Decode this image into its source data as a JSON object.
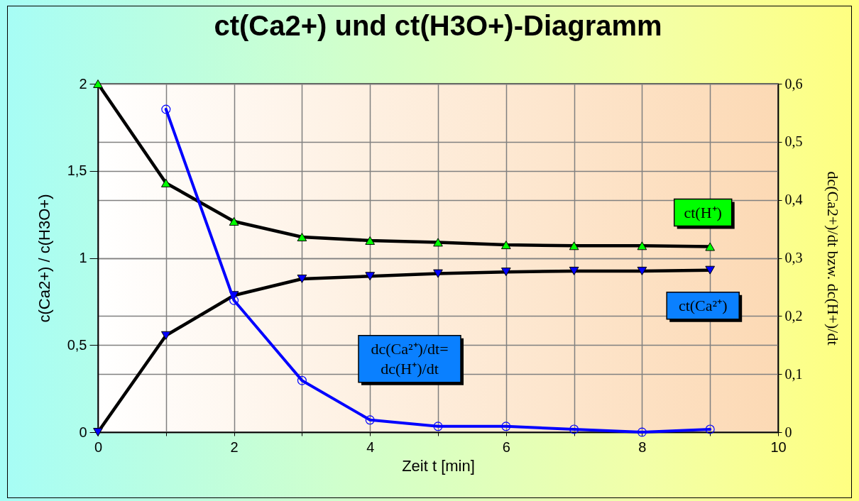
{
  "chart_data": {
    "type": "line",
    "title": "ct(Ca2+) und ct(H3O+)-Diagramm",
    "xlabel": "Zeit t [min]",
    "ylabel": "c(Ca2+) / c(H3O+)",
    "y2label": "dc(Ca2+)/dt bzw. dc(H+)/dt",
    "x": [
      0,
      1,
      2,
      3,
      4,
      5,
      6,
      7,
      8,
      9
    ],
    "xlim": [
      0,
      10
    ],
    "xticks": [
      0,
      {
        "value": 1,
        "label": null
      },
      2,
      {
        "value": 3,
        "label": null
      },
      4,
      {
        "value": 5,
        "label": null
      },
      6,
      {
        "value": 7,
        "label": null
      },
      8,
      {
        "value": 9,
        "label": null
      },
      10
    ],
    "ylim": [
      0,
      2
    ],
    "yticks": [
      0,
      {
        "value": 0.5,
        "label": "0,5"
      },
      1,
      {
        "value": 1.5,
        "label": "1,5"
      },
      2
    ],
    "y2lim": [
      0,
      0.6
    ],
    "y2ticks": [
      0,
      {
        "value": 0.1,
        "label": "0,1"
      },
      {
        "value": 0.2,
        "label": "0,2"
      },
      {
        "value": 0.3,
        "label": "0,3"
      },
      {
        "value": 0.4,
        "label": "0,4"
      },
      {
        "value": 0.5,
        "label": "0,5"
      },
      {
        "value": 0.6,
        "label": "0,6"
      }
    ],
    "grid": true,
    "series": [
      {
        "name": "ct(H⁺)",
        "color": "#000000",
        "colors": [
          "#00ff00",
          "#00ff00",
          "#00ff00",
          "#00ff00",
          "#00ff00",
          "#00ff00",
          "#00ff00",
          "#00ff00",
          "#00ff00",
          "#00ff00"
        ],
        "marker": "triangle",
        "line_style": "solid",
        "values": [
          2,
          1.43,
          1.21,
          1.12,
          1.1,
          1.09,
          1.075,
          1.07,
          1.07,
          1.065
        ]
      },
      {
        "name": "ct(Ca²⁺)",
        "color": "#000000",
        "colors": [
          "#0000ff",
          "#0000ff",
          "#0000ff",
          "#0000ff",
          "#0000ff",
          "#0000ff",
          "#0000ff",
          "#0000ff",
          "#0000ff",
          "#0000ff"
        ],
        "marker": "triangle-down",
        "line_style": "solid",
        "values": [
          0,
          0.555,
          0.785,
          0.88,
          0.895,
          0.91,
          0.92,
          0.925,
          0.925,
          0.93
        ]
      },
      {
        "name": "dc(Ca²⁺)/dt=dc(H⁺)/dt",
        "color": "#0000ff",
        "axis": "y2",
        "marker": "circle",
        "line_style": "solid",
        "values": [
          null,
          0.556,
          0.227,
          0.089,
          0.021,
          0.01,
          0.01,
          0.005,
          0,
          0.005
        ]
      }
    ]
  }
}
